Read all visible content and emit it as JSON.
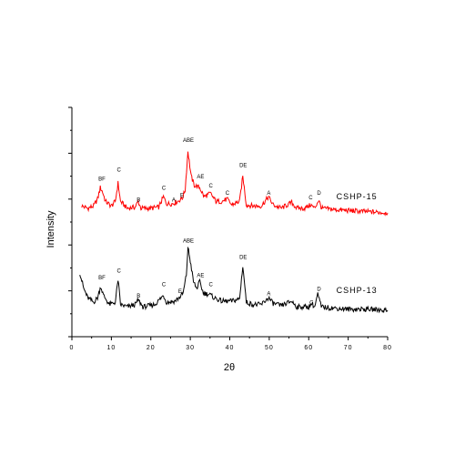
{
  "chart_data": {
    "type": "line",
    "title": "",
    "xlabel": "2θ",
    "ylabel": "Intensity",
    "xlim": [
      0,
      80
    ],
    "ylim": [
      0,
      10
    ],
    "x_ticks": [
      "0",
      "10",
      "20",
      "30",
      "40",
      "50",
      "60",
      "70",
      "80"
    ],
    "y_ticks_labeled": false,
    "grid": false,
    "series": [
      {
        "name": "CSHP-15",
        "color": "#ff0000",
        "points": [
          [
            2.5,
            5.7
          ],
          [
            4,
            5.6
          ],
          [
            5.5,
            5.7
          ],
          [
            6.5,
            6.0
          ],
          [
            7.2,
            6.5
          ],
          [
            7.8,
            6.3
          ],
          [
            8.5,
            5.9
          ],
          [
            10,
            5.7
          ],
          [
            11,
            5.9
          ],
          [
            11.7,
            6.7
          ],
          [
            12.3,
            5.9
          ],
          [
            14,
            5.6
          ],
          [
            16,
            5.65
          ],
          [
            16.8,
            5.9
          ],
          [
            17.5,
            5.6
          ],
          [
            20,
            5.6
          ],
          [
            22,
            5.65
          ],
          [
            23.2,
            6.1
          ],
          [
            24,
            5.8
          ],
          [
            25.5,
            5.8
          ],
          [
            26.8,
            5.9
          ],
          [
            28,
            6.05
          ],
          [
            28.7,
            6.4
          ],
          [
            29.4,
            8.1
          ],
          [
            30.2,
            7.0
          ],
          [
            31,
            6.6
          ],
          [
            32.4,
            6.5
          ],
          [
            33.5,
            6.1
          ],
          [
            35.1,
            6.25
          ],
          [
            36.5,
            5.9
          ],
          [
            38,
            5.9
          ],
          [
            39.3,
            6.0
          ],
          [
            40.5,
            5.75
          ],
          [
            42.5,
            5.9
          ],
          [
            43.3,
            7.0
          ],
          [
            44.2,
            5.75
          ],
          [
            46,
            5.7
          ],
          [
            48,
            5.7
          ],
          [
            49.8,
            6.1
          ],
          [
            51,
            5.75
          ],
          [
            53,
            5.6
          ],
          [
            55.7,
            5.85
          ],
          [
            57,
            5.6
          ],
          [
            59,
            5.6
          ],
          [
            60.5,
            5.75
          ],
          [
            61.5,
            5.6
          ],
          [
            62.5,
            5.95
          ],
          [
            63.3,
            5.6
          ],
          [
            66,
            5.55
          ],
          [
            70,
            5.5
          ],
          [
            75,
            5.45
          ],
          [
            80,
            5.4
          ]
        ]
      },
      {
        "name": "CSHP-13",
        "color": "#000000",
        "points": [
          [
            2,
            2.8
          ],
          [
            3,
            2.1
          ],
          [
            4,
            1.7
          ],
          [
            5.5,
            1.5
          ],
          [
            6.5,
            1.7
          ],
          [
            7.3,
            2.2
          ],
          [
            8,
            1.8
          ],
          [
            9.5,
            1.4
          ],
          [
            11,
            1.5
          ],
          [
            11.7,
            2.5
          ],
          [
            12.3,
            1.4
          ],
          [
            14,
            1.3
          ],
          [
            16,
            1.4
          ],
          [
            16.8,
            1.6
          ],
          [
            18,
            1.3
          ],
          [
            21,
            1.4
          ],
          [
            23.2,
            1.8
          ],
          [
            24,
            1.5
          ],
          [
            26,
            1.55
          ],
          [
            27.2,
            1.7
          ],
          [
            28.2,
            1.9
          ],
          [
            29,
            2.7
          ],
          [
            29.4,
            3.9
          ],
          [
            30,
            3.3
          ],
          [
            30.8,
            2.4
          ],
          [
            31.6,
            2.1
          ],
          [
            32.4,
            2.4
          ],
          [
            33.3,
            1.9
          ],
          [
            34.8,
            1.85
          ],
          [
            36,
            1.7
          ],
          [
            38,
            1.55
          ],
          [
            40.5,
            1.55
          ],
          [
            42.5,
            1.65
          ],
          [
            43.3,
            3.1
          ],
          [
            44.2,
            1.5
          ],
          [
            46,
            1.4
          ],
          [
            48,
            1.4
          ],
          [
            49.8,
            1.7
          ],
          [
            51,
            1.45
          ],
          [
            53,
            1.35
          ],
          [
            55.7,
            1.55
          ],
          [
            57,
            1.3
          ],
          [
            60,
            1.3
          ],
          [
            60.8,
            1.45
          ],
          [
            61.5,
            1.3
          ],
          [
            62.3,
            1.85
          ],
          [
            63.2,
            1.3
          ],
          [
            66,
            1.25
          ],
          [
            70,
            1.2
          ],
          [
            75,
            1.2
          ],
          [
            80,
            1.15
          ]
        ]
      }
    ],
    "series_labels": [
      {
        "text": "CSHP-15",
        "x": 67,
        "y": 6.0
      },
      {
        "text": "CSHP-13",
        "x": 67,
        "y": 1.9
      }
    ],
    "annotations": [
      {
        "text": "BF",
        "x": 7.6,
        "y": 6.8
      },
      {
        "text": "C",
        "x": 11.9,
        "y": 7.2
      },
      {
        "text": "B",
        "x": 16.9,
        "y": 5.9
      },
      {
        "text": "C",
        "x": 23.3,
        "y": 6.4
      },
      {
        "text": "A",
        "x": 25.8,
        "y": 5.9
      },
      {
        "text": "E",
        "x": 27.9,
        "y": 6.1
      },
      {
        "text": "ABE",
        "x": 29.5,
        "y": 8.5
      },
      {
        "text": "AE",
        "x": 32.6,
        "y": 6.9
      },
      {
        "text": "C",
        "x": 35.2,
        "y": 6.5
      },
      {
        "text": "C",
        "x": 39.4,
        "y": 6.2
      },
      {
        "text": "DE",
        "x": 43.4,
        "y": 7.4
      },
      {
        "text": "A",
        "x": 49.9,
        "y": 6.2
      },
      {
        "text": "C",
        "x": 60.5,
        "y": 6.0
      },
      {
        "text": "D",
        "x": 62.6,
        "y": 6.2
      },
      {
        "text": "BF",
        "x": 7.6,
        "y": 2.5
      },
      {
        "text": "C",
        "x": 11.9,
        "y": 2.8
      },
      {
        "text": "B",
        "x": 16.9,
        "y": 1.7
      },
      {
        "text": "C",
        "x": 23.3,
        "y": 2.2
      },
      {
        "text": "E",
        "x": 27.4,
        "y": 1.9
      },
      {
        "text": "ABE",
        "x": 29.5,
        "y": 4.1
      },
      {
        "text": "AE",
        "x": 32.6,
        "y": 2.6
      },
      {
        "text": "C",
        "x": 35.2,
        "y": 2.2
      },
      {
        "text": "DE",
        "x": 43.4,
        "y": 3.4
      },
      {
        "text": "A",
        "x": 49.9,
        "y": 1.8
      },
      {
        "text": "C",
        "x": 60.7,
        "y": 1.4
      },
      {
        "text": "D",
        "x": 62.6,
        "y": 2.0
      }
    ]
  }
}
